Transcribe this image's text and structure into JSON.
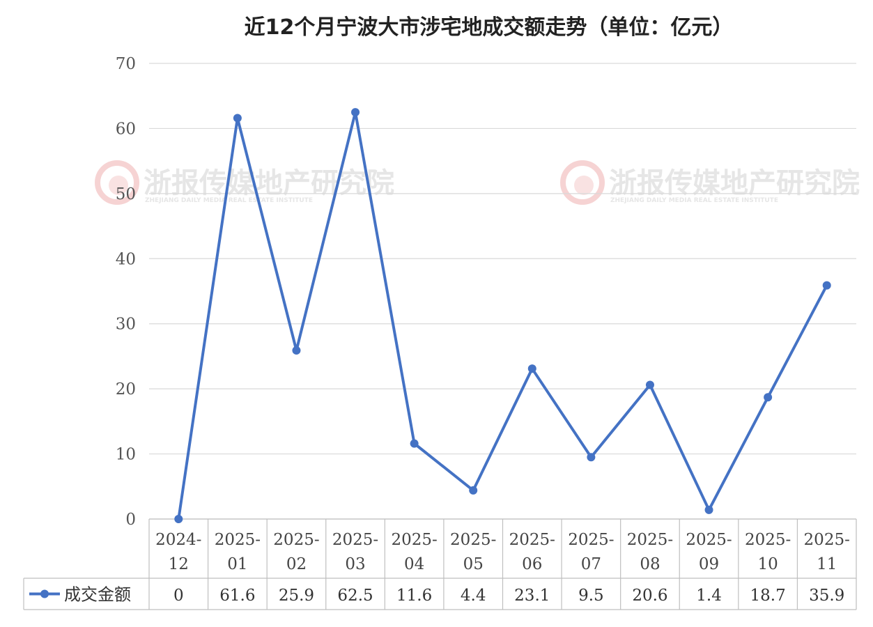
{
  "chart_data": {
    "type": "line",
    "title": "近12个月宁波大市涉宅地成交额走势（单位：亿元）",
    "categories": [
      [
        "2024-",
        "12"
      ],
      [
        "2025-",
        "01"
      ],
      [
        "2025-",
        "02"
      ],
      [
        "2025-",
        "03"
      ],
      [
        "2025-",
        "04"
      ],
      [
        "2025-",
        "05"
      ],
      [
        "2025-",
        "06"
      ],
      [
        "2025-",
        "07"
      ],
      [
        "2025-",
        "08"
      ],
      [
        "2025-",
        "09"
      ],
      [
        "2025-",
        "10"
      ],
      [
        "2025-",
        "11"
      ]
    ],
    "series": [
      {
        "name": "成交金额",
        "values": [
          0,
          61.6,
          25.9,
          62.5,
          11.6,
          4.4,
          23.1,
          9.5,
          20.6,
          1.4,
          18.7,
          35.9
        ],
        "value_labels": [
          "0",
          "61.6",
          "25.9",
          "62.5",
          "11.6",
          "4.4",
          "23.1",
          "9.5",
          "20.6",
          "1.4",
          "18.7",
          "35.9"
        ],
        "color": "#4472C4"
      }
    ],
    "ylim": [
      0,
      70
    ],
    "yticks": [
      0,
      10,
      20,
      30,
      40,
      50,
      60,
      70
    ],
    "grid": true,
    "legend": "data-table-left",
    "gridColor": "#d9d9d9",
    "tableLineColor": "#bfbfbf"
  },
  "watermark": {
    "text": "浙报传媒地产研究院",
    "subtext": "ZHEJIANG DAILY MEDIA REAL ESTATE INSTITUTE",
    "logo-icon": "swirl-logo-icon"
  }
}
